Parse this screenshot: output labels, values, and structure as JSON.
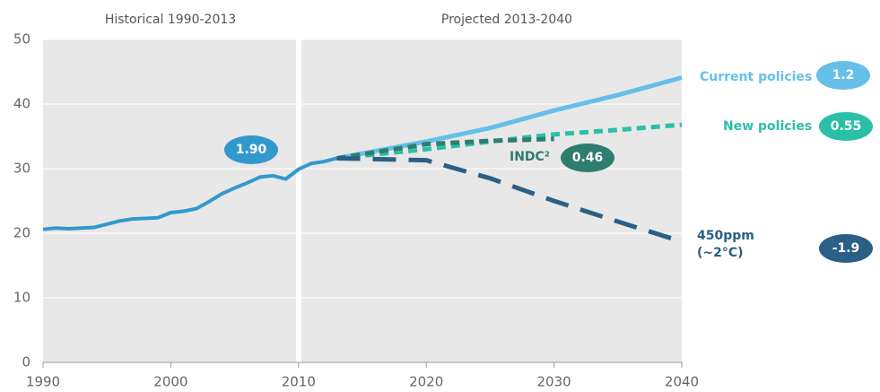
{
  "chart_data": {
    "type": "line",
    "periods": [
      "Historical  1990-2013",
      "Projected 2013-2040"
    ],
    "xlim": [
      1990,
      2040
    ],
    "xticks": [
      1990,
      2000,
      2010,
      2020,
      2030,
      2040
    ],
    "ylim": [
      0,
      50
    ],
    "yticks": [
      0,
      10,
      20,
      30,
      40,
      50
    ],
    "grid": true,
    "series": [
      {
        "color": "#3399cc",
        "style": "solid",
        "badge": "1.90",
        "x": [
          1990,
          1991,
          1992,
          1993,
          1994,
          1995,
          1996,
          1997,
          1998,
          1999,
          2000,
          2001,
          2002,
          2003,
          2004,
          2005,
          2006,
          2007,
          2008,
          2009,
          2010,
          2011,
          2012,
          2013
        ],
        "values": [
          20.6,
          20.8,
          20.7,
          20.8,
          20.9,
          21.4,
          21.9,
          22.2,
          22.3,
          22.4,
          23.2,
          23.4,
          23.8,
          24.9,
          26.1,
          27.0,
          27.8,
          28.7,
          28.9,
          28.4,
          29.9,
          30.8,
          31.1,
          31.6
        ]
      },
      {
        "name": "Current policies",
        "color": "#66bfe8",
        "style": "solid",
        "badge": "1.2",
        "x": [
          2013,
          2020,
          2025,
          2030,
          2035,
          2040
        ],
        "values": [
          31.6,
          34.2,
          36.3,
          39.0,
          41.4,
          44.1
        ]
      },
      {
        "name": "New policies",
        "color": "#2bbfa8",
        "style": "dashed",
        "badge": "0.55",
        "x": [
          2013,
          2020,
          2025,
          2030,
          2035,
          2040
        ],
        "values": [
          31.6,
          33.0,
          34.2,
          35.3,
          36.0,
          36.8
        ]
      },
      {
        "name": "INDC²",
        "color": "#2e7d6e",
        "style": "dashed",
        "badge": "0.46",
        "x": [
          2013,
          2020,
          2025,
          2030
        ],
        "values": [
          31.6,
          33.8,
          34.3,
          34.6
        ]
      },
      {
        "name": "450ppm (~2°C)",
        "color": "#2a5f86",
        "style": "longdash",
        "badge": "-1.9",
        "x": [
          2013,
          2020,
          2025,
          2030,
          2035,
          2040
        ],
        "values": [
          31.6,
          31.3,
          28.5,
          25.0,
          21.8,
          18.7
        ]
      }
    ]
  }
}
